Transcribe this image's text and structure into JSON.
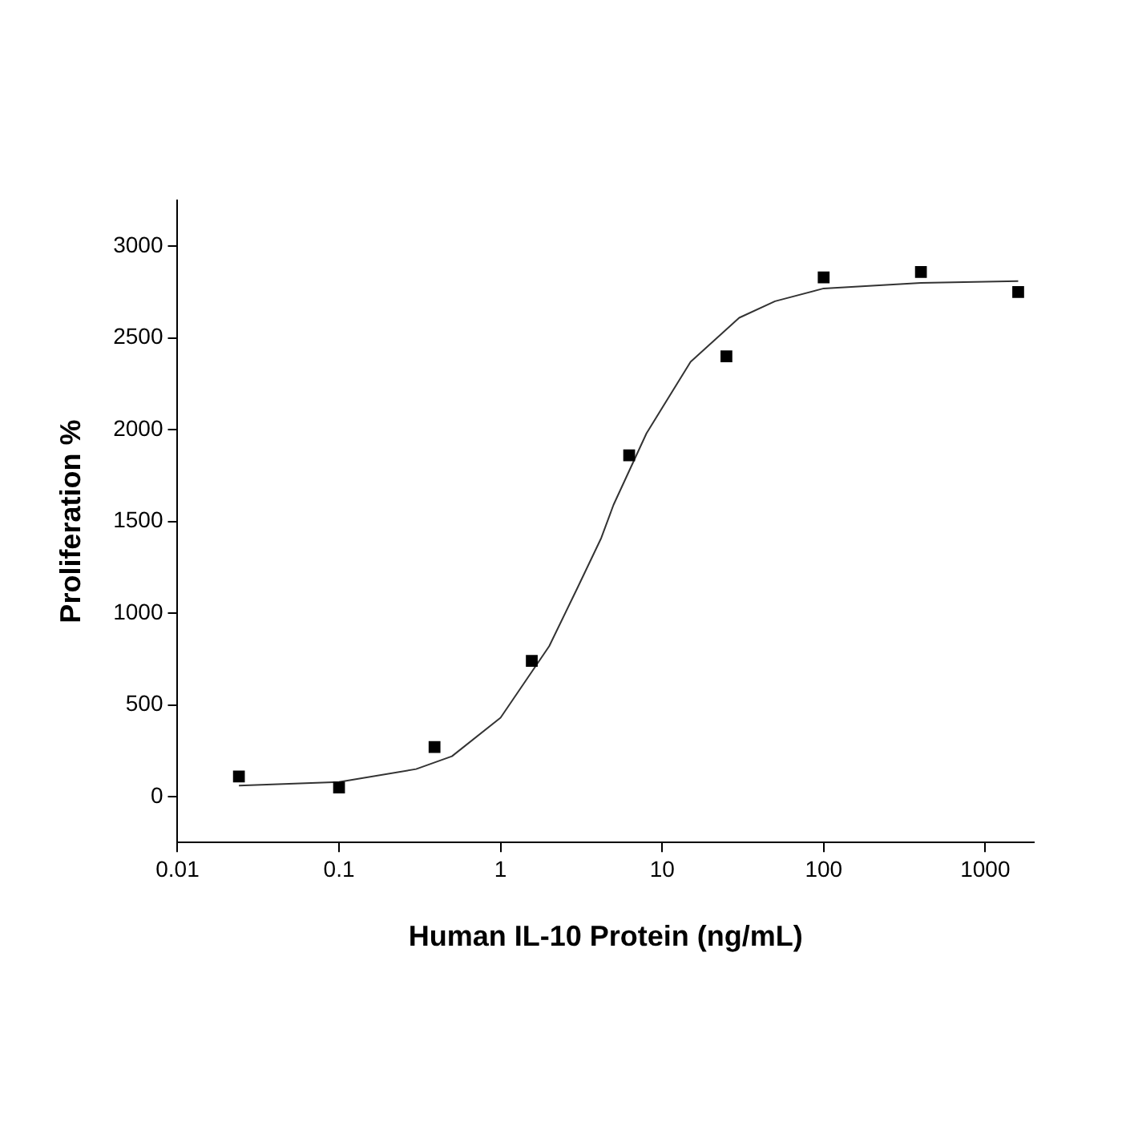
{
  "chart_data": {
    "type": "scatter",
    "xlabel": "Human IL-10 Protein (ng/mL)",
    "ylabel": "Proliferation %",
    "log": "x",
    "xlim": [
      0.01,
      2000
    ],
    "xticks": [
      0.01,
      0.1,
      1,
      10,
      100,
      1000
    ],
    "ylim": [
      -250,
      3250
    ],
    "yticks": [
      0,
      500,
      1000,
      1500,
      2000,
      2500,
      3000
    ],
    "grid": false,
    "legend": false,
    "marker": "square",
    "series": [
      {
        "type": "scatter",
        "color": "#000000",
        "x": [
          0.024,
          0.1,
          0.39,
          1.56,
          6.25,
          25,
          100,
          400,
          1600
        ],
        "values": [
          110,
          50,
          270,
          740,
          1860,
          2400,
          2830,
          2860,
          2750
        ]
      },
      {
        "type": "line",
        "color": "#333333",
        "line_style": "solid",
        "marker": "none",
        "x": [
          0.024,
          0.1,
          0.3,
          0.5,
          1,
          2,
          3,
          4.2,
          5,
          8,
          15,
          30,
          50,
          100,
          400,
          1600
        ],
        "values": [
          60,
          80,
          150,
          220,
          430,
          820,
          1140,
          1410,
          1590,
          1980,
          2370,
          2610,
          2700,
          2770,
          2800,
          2810
        ]
      }
    ]
  }
}
